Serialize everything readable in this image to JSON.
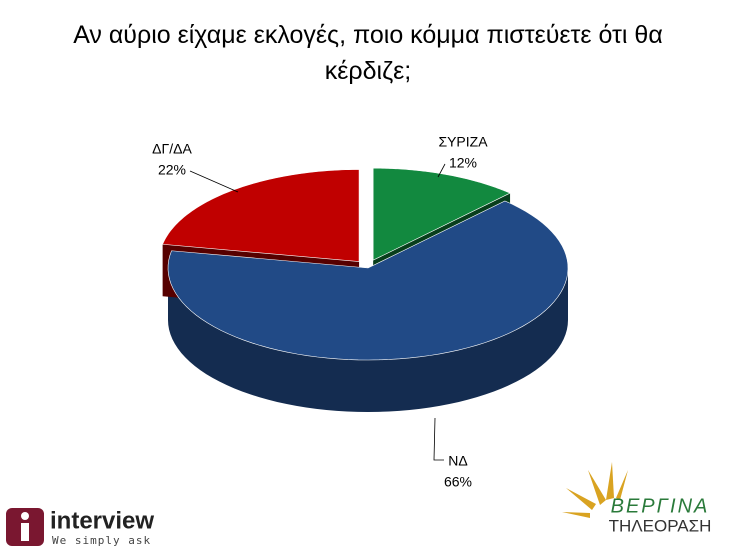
{
  "chart_data": {
    "type": "pie",
    "title": "Αν αύριο είχαμε εκλογές, ποιο κόμμα πιστεύετε ότι θα κέρδιζε;",
    "categories": [
      "ΣΥΡΙΖΑ",
      "ΝΔ",
      "ΔΓ/ΔΑ"
    ],
    "values": [
      12,
      66,
      22
    ],
    "value_labels": [
      "12%",
      "66%",
      "22%"
    ],
    "colors": [
      "#12893f",
      "#214a86",
      "#c00000"
    ]
  },
  "logos": {
    "interview": {
      "name": "interview",
      "tagline": "We simply ask"
    },
    "vergina": {
      "name": "ΒΕΡΓΙΝΑ",
      "tagline": "ΤΗΛΕΟΡΑΣΗ"
    }
  }
}
